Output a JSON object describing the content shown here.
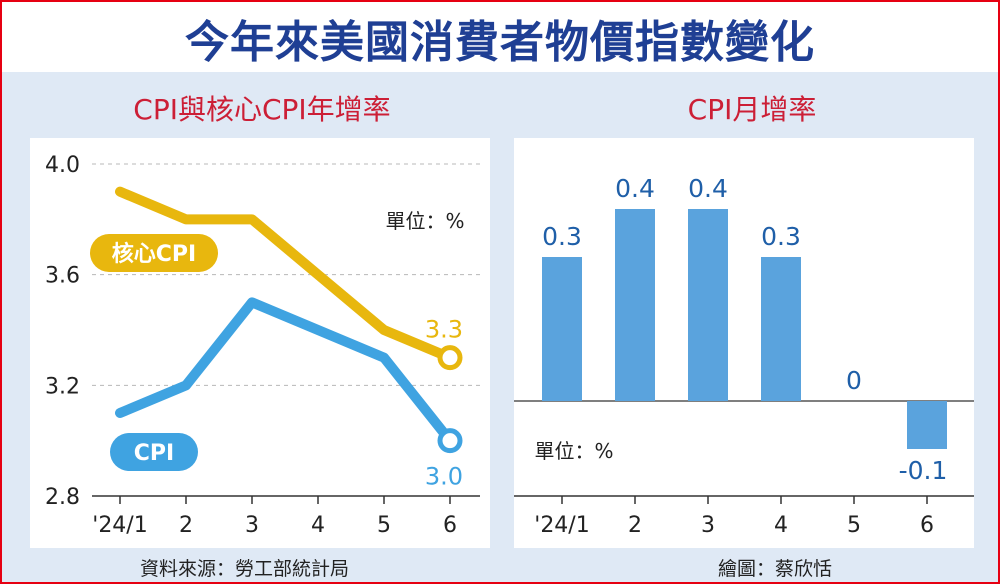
{
  "header": {
    "title": "今年來美國消費者物價指數變化"
  },
  "footer": {
    "source": "資料來源：勞工部統計局",
    "credit": "繪圖：蔡欣恬"
  },
  "colors": {
    "core": "#e8b70e",
    "cpi": "#3fa3e1",
    "bar": "#5aa3dd",
    "value_text": "#1f5fa8",
    "title": "#1f3f94",
    "subtitle": "#cc1f36",
    "background": "#dfe9f5"
  },
  "chart_data": [
    {
      "type": "line",
      "title": "CPI與核心CPI年增率",
      "unit_label": "單位：%",
      "categories": [
        "'24/1",
        "2",
        "3",
        "4",
        "5",
        "6"
      ],
      "ylim": [
        2.8,
        4.0
      ],
      "yticks": [
        "2.8",
        "3.2",
        "3.6",
        "4.0"
      ],
      "grid": true,
      "series": [
        {
          "name": "核心CPI",
          "values": [
            3.9,
            3.8,
            3.8,
            3.6,
            3.4,
            3.3
          ],
          "end_label": "3.3"
        },
        {
          "name": "CPI",
          "values": [
            3.1,
            3.2,
            3.5,
            3.4,
            3.3,
            3.0
          ],
          "end_label": "3.0"
        }
      ]
    },
    {
      "type": "bar",
      "title": "CPI月增率",
      "unit_label": "單位：%",
      "categories": [
        "'24/1",
        "2",
        "3",
        "4",
        "5",
        "6"
      ],
      "values": [
        0.3,
        0.4,
        0.4,
        0.3,
        0,
        -0.1
      ],
      "value_labels": [
        "0.3",
        "0.4",
        "0.4",
        "0.3",
        "0",
        "-0.1"
      ],
      "ylim": [
        -0.2,
        0.5
      ]
    }
  ]
}
